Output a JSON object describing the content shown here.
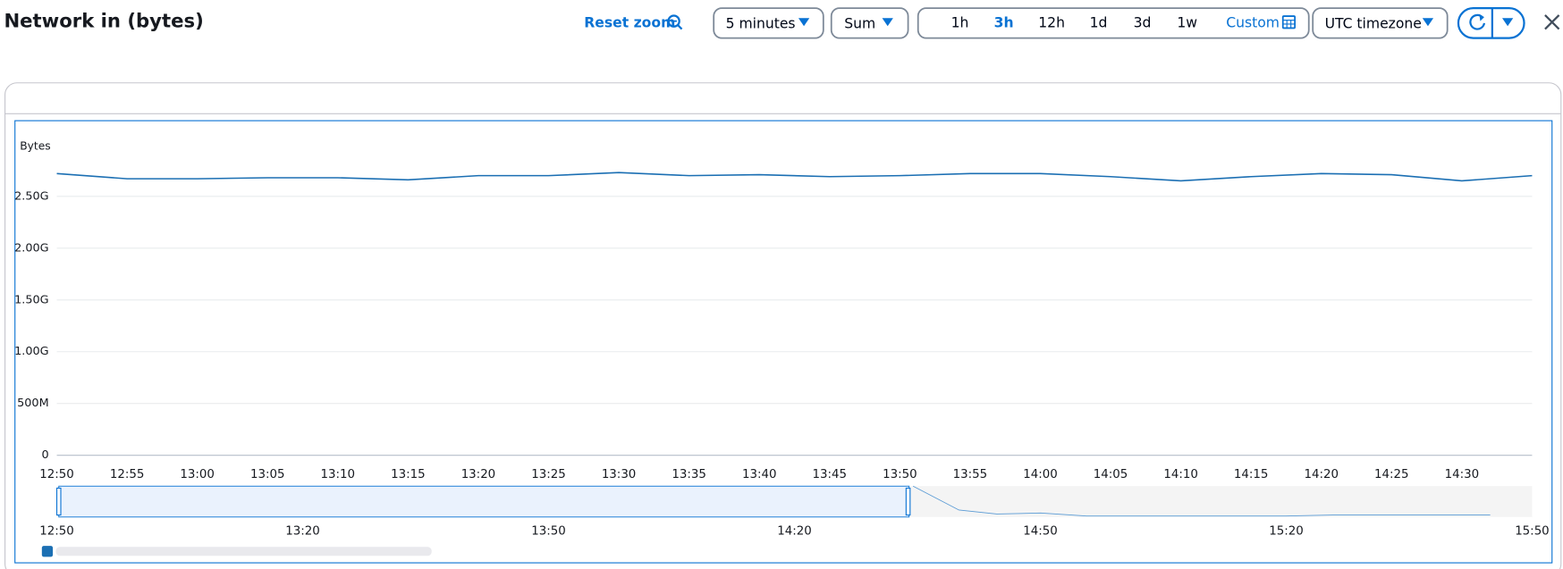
{
  "header": {
    "title": "Network in (bytes)",
    "reset_zoom": "Reset zoom",
    "period": "5 minutes",
    "statistic": "Sum",
    "ranges": [
      "1h",
      "3h",
      "12h",
      "1d",
      "3d",
      "1w"
    ],
    "selected_range": "3h",
    "custom": "Custom",
    "timezone": "UTC timezone"
  },
  "chart_data": {
    "type": "line",
    "y_label": "Bytes",
    "categories": [
      "12:50",
      "12:55",
      "13:00",
      "13:05",
      "13:10",
      "13:15",
      "13:20",
      "13:25",
      "13:30",
      "13:35",
      "13:40",
      "13:45",
      "13:50",
      "13:55",
      "14:00",
      "14:05",
      "14:10",
      "14:15",
      "14:20",
      "14:25",
      "14:30",
      null
    ],
    "series": [
      {
        "color": "#1b6fb3",
        "values": [
          2720000000,
          2670000000,
          2670000000,
          2680000000,
          2680000000,
          2660000000,
          2700000000,
          2700000000,
          2730000000,
          2700000000,
          2710000000,
          2690000000,
          2700000000,
          2720000000,
          2720000000,
          2690000000,
          2650000000,
          2690000000,
          2720000000,
          2710000000,
          2650000000,
          2700000000
        ]
      }
    ],
    "ylim": [
      0,
      3000000000
    ],
    "yticks": [
      0,
      {
        "value": 500000000,
        "label": "500M"
      },
      {
        "value": 1000000000,
        "label": "1.00G"
      },
      {
        "value": 1500000000,
        "label": "1.50G"
      },
      {
        "value": 2000000000,
        "label": "2.00G"
      },
      {
        "value": 2500000000,
        "label": "2.50G"
      }
    ],
    "grid": true,
    "navigator_ticks": [
      "12:50",
      "13:20",
      "13:50",
      "14:20",
      "14:50",
      "15:20",
      "15:50"
    ]
  }
}
